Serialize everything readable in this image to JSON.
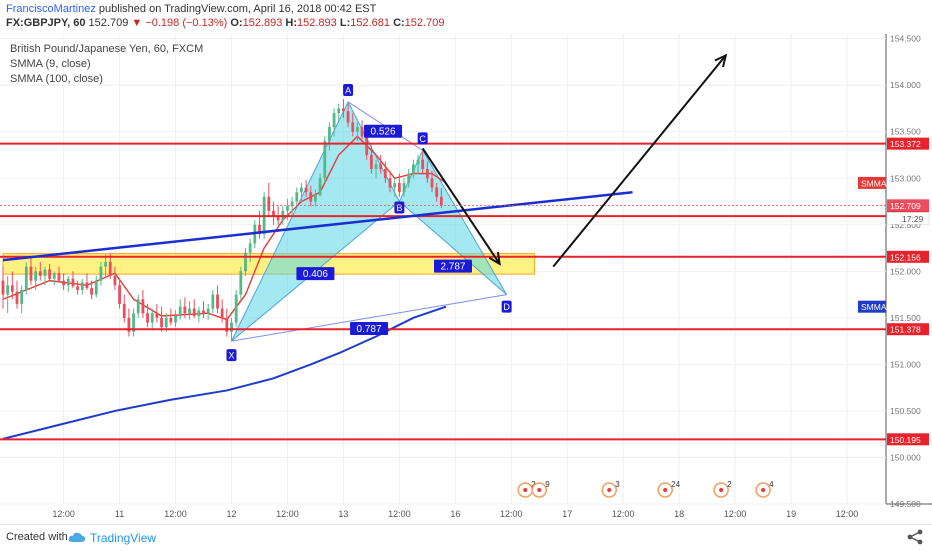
{
  "header": {
    "author": "FranciscoMartinez",
    "published": "published on TradingView.com, April 16, 2018 00:42 EST",
    "symbol": "FX:GBPJPY, 60",
    "last": "152.709",
    "change_arrow": "▼",
    "change": "−0.198 (−0.13%)",
    "open_label": "O:",
    "open": "152.893",
    "high_label": "H:",
    "high": "152.893",
    "low_label": "L:",
    "low": "152.681",
    "close_label": "C:",
    "close": "152.709"
  },
  "legend": {
    "title": "British Pound/Japanese Yen, 60, FXCM",
    "ind1": "SMMA (9, close)",
    "ind2": "SMMA (100, close)"
  },
  "footer": {
    "created": "Created with",
    "brand": "TradingView"
  },
  "colors": {
    "up": "#53b987",
    "down": "#eb4d5c",
    "level": "#e8222b",
    "trend": "#1a2fd1",
    "smma_fast": "#e53935",
    "smma_slow": "#1e3cc8",
    "pattern_fill": "#5ad6e8",
    "zone": "#fff176",
    "label_blue": "#1a1ad8"
  },
  "chart_data": {
    "type": "candlestick",
    "ylim": [
      149.5,
      154.55
    ],
    "y_ticks": [
      "154.500",
      "154.000",
      "153.500",
      "153.000",
      "152.500",
      "152.000",
      "151.500",
      "151.000",
      "150.500",
      "150.000",
      "149.500"
    ],
    "x_labels": [
      {
        "t": 13,
        "text": "12:00"
      },
      {
        "t": 25,
        "text": "11"
      },
      {
        "t": 37,
        "text": "12:00"
      },
      {
        "t": 49,
        "text": "12"
      },
      {
        "t": 61,
        "text": "12:00"
      },
      {
        "t": 73,
        "text": "13"
      },
      {
        "t": 85,
        "text": "12:00"
      },
      {
        "t": 97,
        "text": "16"
      },
      {
        "t": 109,
        "text": "12:00"
      },
      {
        "t": 121,
        "text": "17"
      },
      {
        "t": 133,
        "text": "12:00"
      },
      {
        "t": 145,
        "text": "18"
      },
      {
        "t": 157,
        "text": "12:00"
      },
      {
        "t": 169,
        "text": "19"
      },
      {
        "t": 181,
        "text": "12:00"
      }
    ],
    "levels": [
      {
        "price": 153.372,
        "label": "153.372"
      },
      {
        "price": 152.593,
        "label": "152.593"
      },
      {
        "price": 152.156,
        "label": "152.156"
      },
      {
        "price": 151.378,
        "label": "151.378"
      },
      {
        "price": 150.195,
        "label": "150.195"
      }
    ],
    "side_labels": [
      {
        "price": 152.95,
        "text": "SMMA",
        "color": "#e53935"
      },
      {
        "price": 151.62,
        "text": "SMMA",
        "color": "#1e3cc8"
      },
      {
        "price": 152.709,
        "text": "152.709",
        "color": "#eb4d5c"
      }
    ],
    "countdown": "17:29",
    "zone": {
      "t0": 0,
      "t1": 114,
      "p_top": 152.19,
      "p_bot": 151.97
    },
    "trendline": {
      "t0": 0,
      "p0": 152.12,
      "t1": 135,
      "p1": 152.85
    },
    "pattern": {
      "X": {
        "t": 49,
        "p": 151.25
      },
      "A": {
        "t": 74,
        "p": 153.82
      },
      "B": {
        "t": 85,
        "p": 152.75
      },
      "C": {
        "t": 90,
        "p": 153.3
      },
      "D": {
        "t": 108,
        "p": 151.75
      }
    },
    "ratios": [
      {
        "t": 81.5,
        "p": 153.5,
        "text": "0.526"
      },
      {
        "t": 67,
        "p": 151.97,
        "text": "0.406"
      },
      {
        "t": 96.5,
        "p": 152.05,
        "text": "2.787"
      },
      {
        "t": 78.5,
        "p": 151.38,
        "text": "0.787"
      }
    ],
    "arrows": [
      {
        "t0": 90,
        "p0": 153.32,
        "t1": 106.5,
        "p1": 152.08
      },
      {
        "t0": 118,
        "p0": 152.05,
        "t1": 155,
        "p1": 154.32
      }
    ],
    "candles": [
      [
        151.9,
        152.05,
        151.6,
        151.75
      ],
      [
        151.75,
        151.95,
        151.55,
        151.85
      ],
      [
        151.85,
        152.0,
        151.7,
        151.78
      ],
      [
        151.78,
        151.9,
        151.6,
        151.65
      ],
      [
        151.65,
        151.85,
        151.55,
        151.8
      ],
      [
        151.8,
        152.1,
        151.75,
        152.05
      ],
      [
        152.05,
        152.15,
        151.85,
        151.9
      ],
      [
        151.9,
        152.05,
        151.8,
        152.0
      ],
      [
        152.0,
        152.1,
        151.9,
        151.95
      ],
      [
        151.95,
        152.05,
        151.85,
        152.02
      ],
      [
        152.02,
        152.08,
        151.9,
        151.92
      ],
      [
        151.92,
        152.0,
        151.85,
        151.98
      ],
      [
        151.98,
        152.05,
        151.88,
        151.9
      ],
      [
        151.9,
        151.98,
        151.8,
        151.85
      ],
      [
        151.85,
        151.95,
        151.78,
        151.92
      ],
      [
        151.92,
        152.0,
        151.82,
        151.84
      ],
      [
        151.84,
        151.9,
        151.75,
        151.8
      ],
      [
        151.8,
        151.92,
        151.75,
        151.88
      ],
      [
        151.88,
        151.98,
        151.8,
        151.82
      ],
      [
        151.82,
        151.9,
        151.7,
        151.75
      ],
      [
        151.75,
        151.95,
        151.72,
        151.9
      ],
      [
        151.9,
        152.1,
        151.85,
        152.05
      ],
      [
        152.05,
        152.18,
        151.95,
        152.1
      ],
      [
        152.1,
        152.2,
        151.92,
        151.95
      ],
      [
        151.95,
        152.05,
        151.8,
        151.85
      ],
      [
        151.85,
        151.9,
        151.6,
        151.65
      ],
      [
        151.65,
        151.75,
        151.45,
        151.5
      ],
      [
        151.5,
        151.6,
        151.3,
        151.35
      ],
      [
        151.35,
        151.6,
        151.3,
        151.55
      ],
      [
        151.55,
        151.75,
        151.5,
        151.7
      ],
      [
        151.7,
        151.8,
        151.5,
        151.55
      ],
      [
        151.55,
        151.65,
        151.4,
        151.45
      ],
      [
        151.45,
        151.6,
        151.38,
        151.55
      ],
      [
        151.55,
        151.65,
        151.45,
        151.5
      ],
      [
        151.5,
        151.62,
        151.35,
        151.4
      ],
      [
        151.4,
        151.55,
        151.35,
        151.5
      ],
      [
        151.5,
        151.6,
        151.42,
        151.45
      ],
      [
        151.45,
        151.58,
        151.4,
        151.52
      ],
      [
        151.52,
        151.7,
        151.48,
        151.62
      ],
      [
        151.62,
        151.72,
        151.5,
        151.55
      ],
      [
        151.55,
        151.68,
        151.48,
        151.6
      ],
      [
        151.6,
        151.7,
        151.5,
        151.52
      ],
      [
        151.52,
        151.62,
        151.45,
        151.58
      ],
      [
        151.58,
        151.68,
        151.5,
        151.55
      ],
      [
        151.55,
        151.65,
        151.48,
        151.6
      ],
      [
        151.6,
        151.8,
        151.55,
        151.75
      ],
      [
        151.75,
        151.85,
        151.55,
        151.6
      ],
      [
        151.6,
        151.7,
        151.45,
        151.5
      ],
      [
        151.5,
        151.6,
        151.3,
        151.35
      ],
      [
        151.35,
        151.5,
        151.25,
        151.45
      ],
      [
        151.45,
        151.8,
        151.4,
        151.75
      ],
      [
        151.75,
        152.05,
        151.7,
        152.0
      ],
      [
        152.0,
        152.25,
        151.95,
        152.2
      ],
      [
        152.2,
        152.35,
        152.1,
        152.3
      ],
      [
        152.3,
        152.55,
        152.25,
        152.5
      ],
      [
        152.5,
        152.65,
        152.35,
        152.4
      ],
      [
        152.4,
        152.85,
        152.35,
        152.8
      ],
      [
        152.8,
        152.95,
        152.6,
        152.65
      ],
      [
        152.65,
        152.75,
        152.5,
        152.6
      ],
      [
        152.6,
        152.7,
        152.5,
        152.55
      ],
      [
        152.55,
        152.7,
        152.5,
        152.65
      ],
      [
        152.65,
        152.78,
        152.55,
        152.7
      ],
      [
        152.7,
        152.8,
        152.6,
        152.75
      ],
      [
        152.75,
        152.9,
        152.7,
        152.85
      ],
      [
        152.85,
        152.95,
        152.75,
        152.9
      ],
      [
        152.9,
        152.98,
        152.8,
        152.85
      ],
      [
        152.85,
        152.92,
        152.7,
        152.75
      ],
      [
        152.75,
        152.88,
        152.7,
        152.82
      ],
      [
        152.82,
        153.05,
        152.8,
        153.0
      ],
      [
        153.0,
        153.45,
        152.95,
        153.4
      ],
      [
        153.4,
        153.6,
        153.3,
        153.55
      ],
      [
        153.55,
        153.75,
        153.45,
        153.7
      ],
      [
        153.7,
        153.8,
        153.6,
        153.75
      ],
      [
        153.75,
        153.85,
        153.65,
        153.72
      ],
      [
        153.72,
        153.8,
        153.55,
        153.6
      ],
      [
        153.6,
        153.7,
        153.45,
        153.5
      ],
      [
        153.5,
        153.6,
        153.4,
        153.55
      ],
      [
        153.55,
        153.62,
        153.42,
        153.45
      ],
      [
        153.45,
        153.55,
        153.2,
        153.25
      ],
      [
        153.25,
        153.35,
        153.05,
        153.1
      ],
      [
        153.1,
        153.2,
        153.0,
        153.15
      ],
      [
        153.15,
        153.25,
        153.05,
        153.1
      ],
      [
        153.1,
        153.18,
        152.95,
        153.0
      ],
      [
        153.0,
        153.08,
        152.85,
        152.9
      ],
      [
        152.9,
        153.0,
        152.8,
        152.95
      ],
      [
        152.95,
        153.05,
        152.8,
        152.85
      ],
      [
        152.85,
        153.0,
        152.8,
        152.95
      ],
      [
        152.95,
        153.1,
        152.9,
        153.05
      ],
      [
        153.05,
        153.2,
        153.0,
        153.15
      ],
      [
        153.15,
        153.25,
        153.05,
        153.2
      ],
      [
        153.2,
        153.28,
        153.05,
        153.1
      ],
      [
        153.1,
        153.18,
        152.95,
        153.0
      ],
      [
        153.0,
        153.08,
        152.85,
        152.9
      ],
      [
        152.9,
        152.95,
        152.75,
        152.8
      ],
      [
        152.8,
        152.893,
        152.681,
        152.709
      ]
    ],
    "smma_fast": [
      [
        0,
        151.7
      ],
      [
        10,
        151.9
      ],
      [
        18,
        151.85
      ],
      [
        24,
        151.98
      ],
      [
        28,
        151.7
      ],
      [
        34,
        151.52
      ],
      [
        44,
        151.55
      ],
      [
        48,
        151.48
      ],
      [
        52,
        151.75
      ],
      [
        56,
        152.25
      ],
      [
        60,
        152.55
      ],
      [
        64,
        152.75
      ],
      [
        68,
        152.85
      ],
      [
        72,
        153.25
      ],
      [
        76,
        153.45
      ],
      [
        80,
        153.25
      ],
      [
        84,
        153.0
      ],
      [
        88,
        153.05
      ],
      [
        92,
        153.05
      ],
      [
        95,
        152.95
      ]
    ],
    "smma_slow": [
      [
        0,
        150.2
      ],
      [
        12,
        150.35
      ],
      [
        24,
        150.5
      ],
      [
        36,
        150.62
      ],
      [
        48,
        150.72
      ],
      [
        58,
        150.85
      ],
      [
        66,
        151.0
      ],
      [
        72,
        151.12
      ],
      [
        80,
        151.3
      ],
      [
        88,
        151.5
      ],
      [
        95,
        151.62
      ]
    ],
    "events": [
      {
        "t": 112,
        "text": "2"
      },
      {
        "t": 115,
        "text": "9"
      },
      {
        "t": 130,
        "text": "3"
      },
      {
        "t": 142,
        "text": "24"
      },
      {
        "t": 154,
        "text": "2"
      },
      {
        "t": 163,
        "text": "4"
      }
    ]
  }
}
